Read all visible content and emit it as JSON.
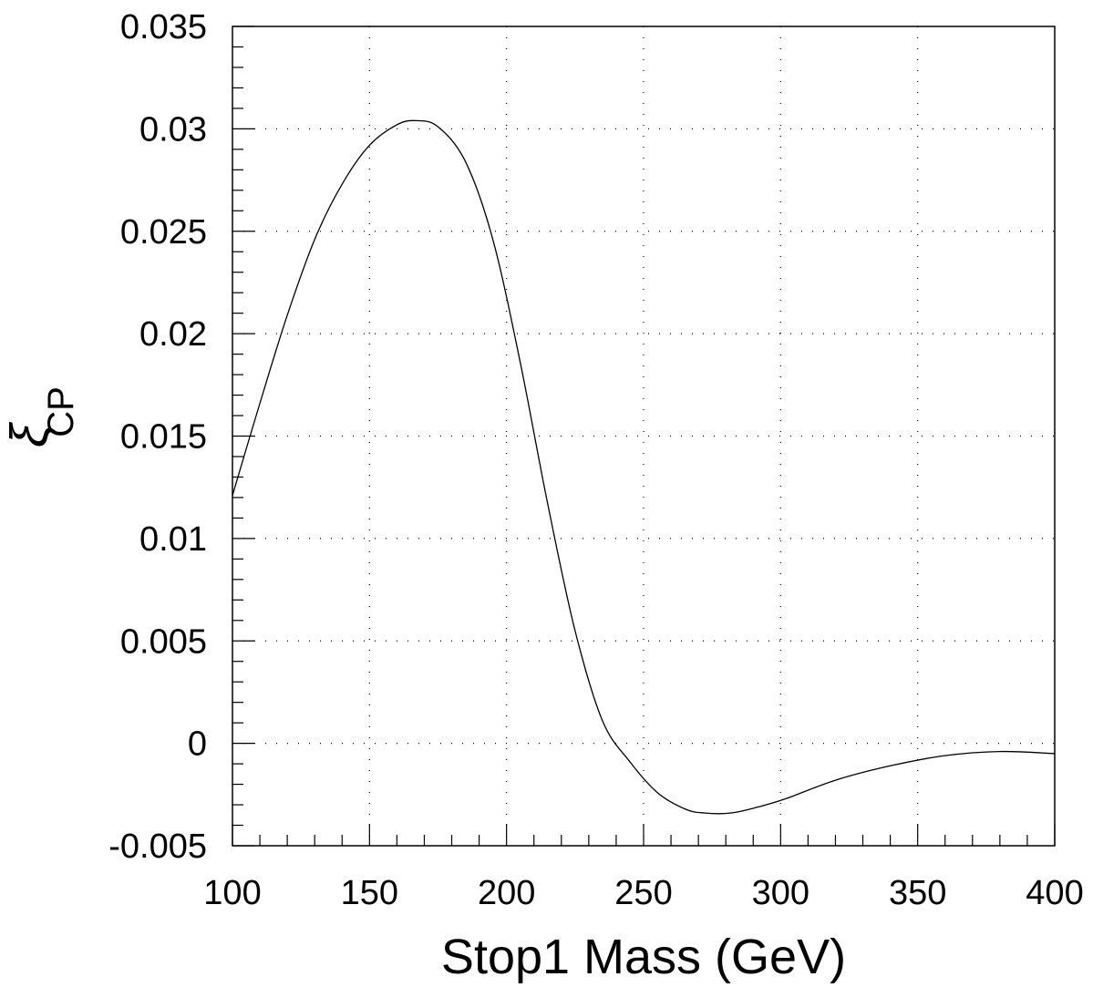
{
  "chart_data": {
    "type": "line",
    "title": "",
    "xlabel": "Stop1 Mass (GeV)",
    "ylabel": "ξ",
    "ylabel_subscript": "CP",
    "xlim": [
      100,
      400
    ],
    "ylim": [
      -0.005,
      0.035
    ],
    "xticks": [
      100,
      150,
      200,
      250,
      300,
      350,
      400
    ],
    "yticks": [
      -0.005,
      0,
      0.005,
      0.01,
      0.015,
      0.02,
      0.025,
      0.03,
      0.035
    ],
    "xtick_labels": [
      "100",
      "150",
      "200",
      "250",
      "300",
      "350",
      "400"
    ],
    "ytick_labels": [
      "-0.005",
      "0",
      "0.005",
      "0.01",
      "0.015",
      "0.02",
      "0.025",
      "0.03",
      "0.035"
    ],
    "grid": true,
    "series": [
      {
        "x": [
          100,
          110,
          120,
          130,
          140,
          150,
          160,
          167,
          175,
          185,
          195,
          205,
          215,
          225,
          235,
          245,
          255,
          265,
          272,
          282,
          292,
          302,
          320,
          340,
          360,
          380,
          400
        ],
        "y": [
          0.0121,
          0.0166,
          0.0209,
          0.0246,
          0.0273,
          0.0292,
          0.0302,
          0.0304,
          0.0301,
          0.0284,
          0.0246,
          0.0186,
          0.0117,
          0.0055,
          0.0011,
          -0.0009,
          -0.0024,
          -0.0032,
          -0.0034,
          -0.0034,
          -0.0031,
          -0.0027,
          -0.0018,
          -0.0011,
          -0.0006,
          -0.0004,
          -0.0005
        ]
      }
    ]
  }
}
